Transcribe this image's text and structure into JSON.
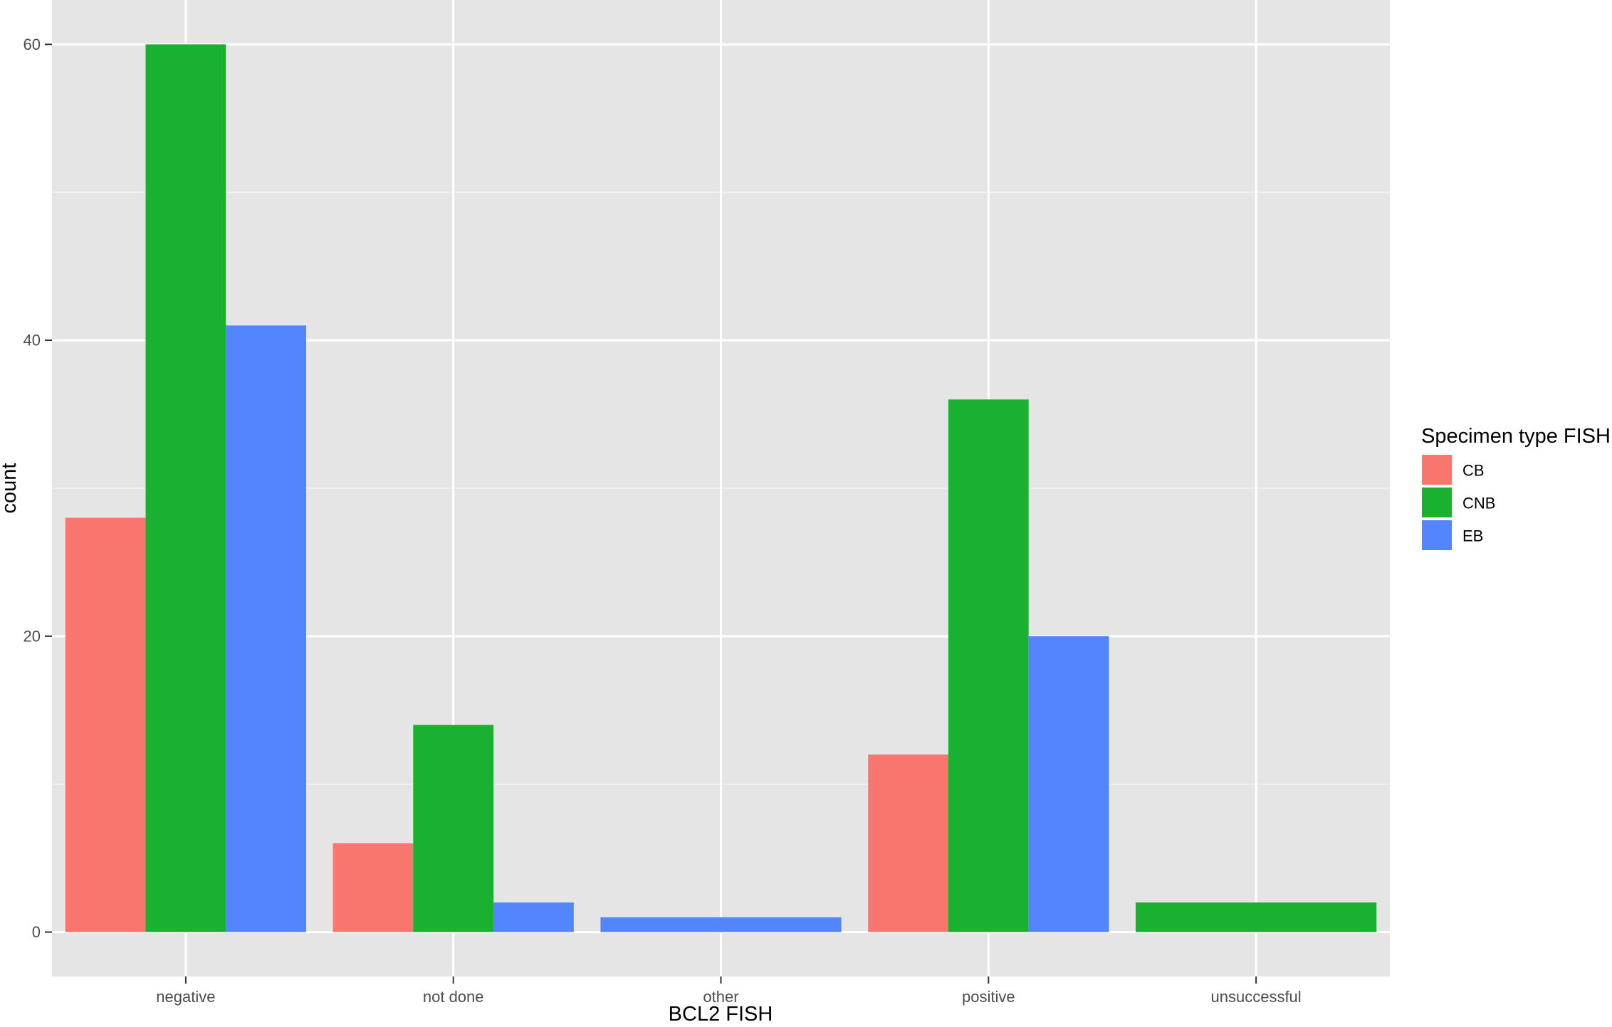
{
  "chart_data": {
    "type": "bar",
    "title": "",
    "xlabel": "BCL2 FISH",
    "ylabel": "count",
    "categories": [
      "negative",
      "not done",
      "other",
      "positive",
      "unsuccessful"
    ],
    "series": [
      {
        "name": "CB",
        "color": "#F8766D",
        "values": [
          28,
          6,
          null,
          12,
          null
        ]
      },
      {
        "name": "CNB",
        "color": "#1AB030",
        "values": [
          60,
          14,
          null,
          36,
          2
        ]
      },
      {
        "name": "EB",
        "color": "#5386FE",
        "values": [
          41,
          2,
          1,
          20,
          null
        ]
      }
    ],
    "ylim": [
      -3,
      63
    ],
    "yticks": [
      0,
      20,
      40,
      60
    ],
    "ytick_labels": [
      "0",
      "20",
      "40",
      "60"
    ],
    "grid": true,
    "legend": {
      "title": "Specimen type FISH",
      "position": "right"
    },
    "panel_background": "#E5E5E5"
  }
}
